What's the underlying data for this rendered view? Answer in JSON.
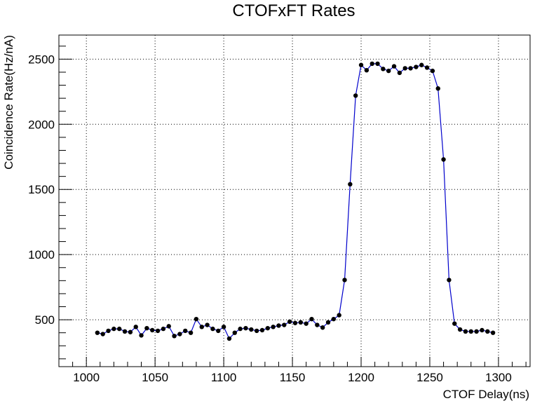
{
  "chart_data": {
    "type": "line",
    "title": "CTOFxFT Rates",
    "xlabel": "CTOF Delay(ns)",
    "ylabel": "Coincidence Rate(Hz/nA)",
    "xlim": [
      980,
      1323
    ],
    "ylim": [
      140,
      2685
    ],
    "x_ticks": [
      1000,
      1050,
      1100,
      1150,
      1200,
      1250,
      1300
    ],
    "y_ticks": [
      500,
      1000,
      1500,
      2000,
      2500
    ],
    "x_tick_labels": [
      "1000",
      "1050",
      "1100",
      "1150",
      "1200",
      "1250",
      "1300"
    ],
    "y_tick_labels": [
      "500",
      "1000",
      "1500",
      "2000",
      "2500"
    ],
    "grid": true,
    "line_color": "#0000cc",
    "marker_color": "#000000",
    "series": [
      {
        "x": [
          1008,
          1012,
          1016,
          1020,
          1024,
          1028,
          1032,
          1036,
          1040,
          1044,
          1048,
          1052,
          1056,
          1060,
          1064,
          1068,
          1072,
          1076,
          1080,
          1084,
          1088,
          1092,
          1096,
          1100,
          1104,
          1108,
          1112,
          1116,
          1120,
          1124,
          1128,
          1132,
          1136,
          1140,
          1144,
          1148,
          1152,
          1156,
          1160,
          1164,
          1168,
          1172,
          1176,
          1180,
          1184,
          1188,
          1192,
          1196,
          1200,
          1204,
          1208,
          1212,
          1216,
          1220,
          1224,
          1228,
          1232,
          1236,
          1240,
          1244,
          1248,
          1252,
          1256,
          1260,
          1264,
          1268,
          1272,
          1276,
          1280,
          1284,
          1288,
          1292,
          1296
        ],
        "y": [
          400,
          390,
          415,
          430,
          430,
          410,
          405,
          445,
          380,
          435,
          420,
          415,
          430,
          450,
          375,
          390,
          415,
          400,
          505,
          445,
          460,
          430,
          415,
          445,
          355,
          400,
          430,
          435,
          425,
          415,
          420,
          435,
          445,
          455,
          460,
          485,
          475,
          480,
          470,
          505,
          460,
          440,
          480,
          505,
          535,
          805,
          1540,
          2220,
          2455,
          2415,
          2465,
          2465,
          2425,
          2410,
          2445,
          2395,
          2430,
          2430,
          2440,
          2455,
          2435,
          2410,
          2275,
          1730,
          805,
          470,
          425,
          410,
          410,
          410,
          420,
          410,
          400
        ]
      }
    ]
  }
}
